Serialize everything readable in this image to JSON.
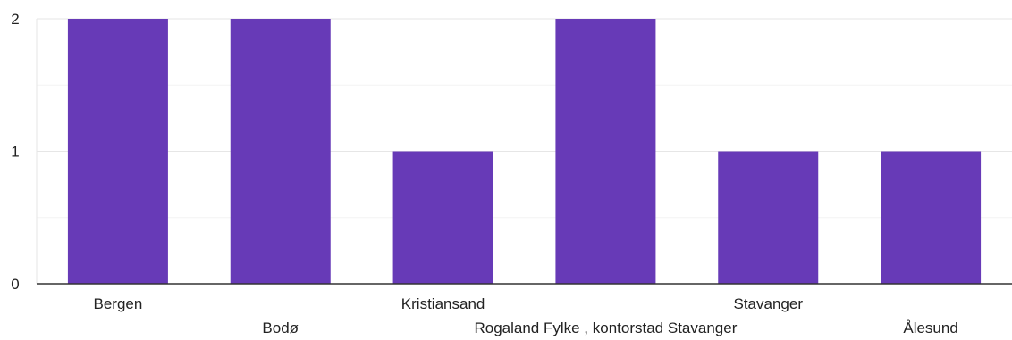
{
  "chart_data": {
    "type": "bar",
    "categories": [
      "Bergen",
      "Bodø",
      "Kristiansand",
      "Rogaland Fylke , kontorstad Stavanger",
      "Stavanger",
      "Ålesund"
    ],
    "values": [
      2,
      2,
      1,
      2,
      1,
      1
    ],
    "ylim": [
      0,
      2
    ],
    "y_ticks": [
      0,
      1,
      2
    ],
    "title": "",
    "xlabel": "",
    "ylabel": "",
    "grid": true,
    "bar_color": "#673ab7"
  }
}
